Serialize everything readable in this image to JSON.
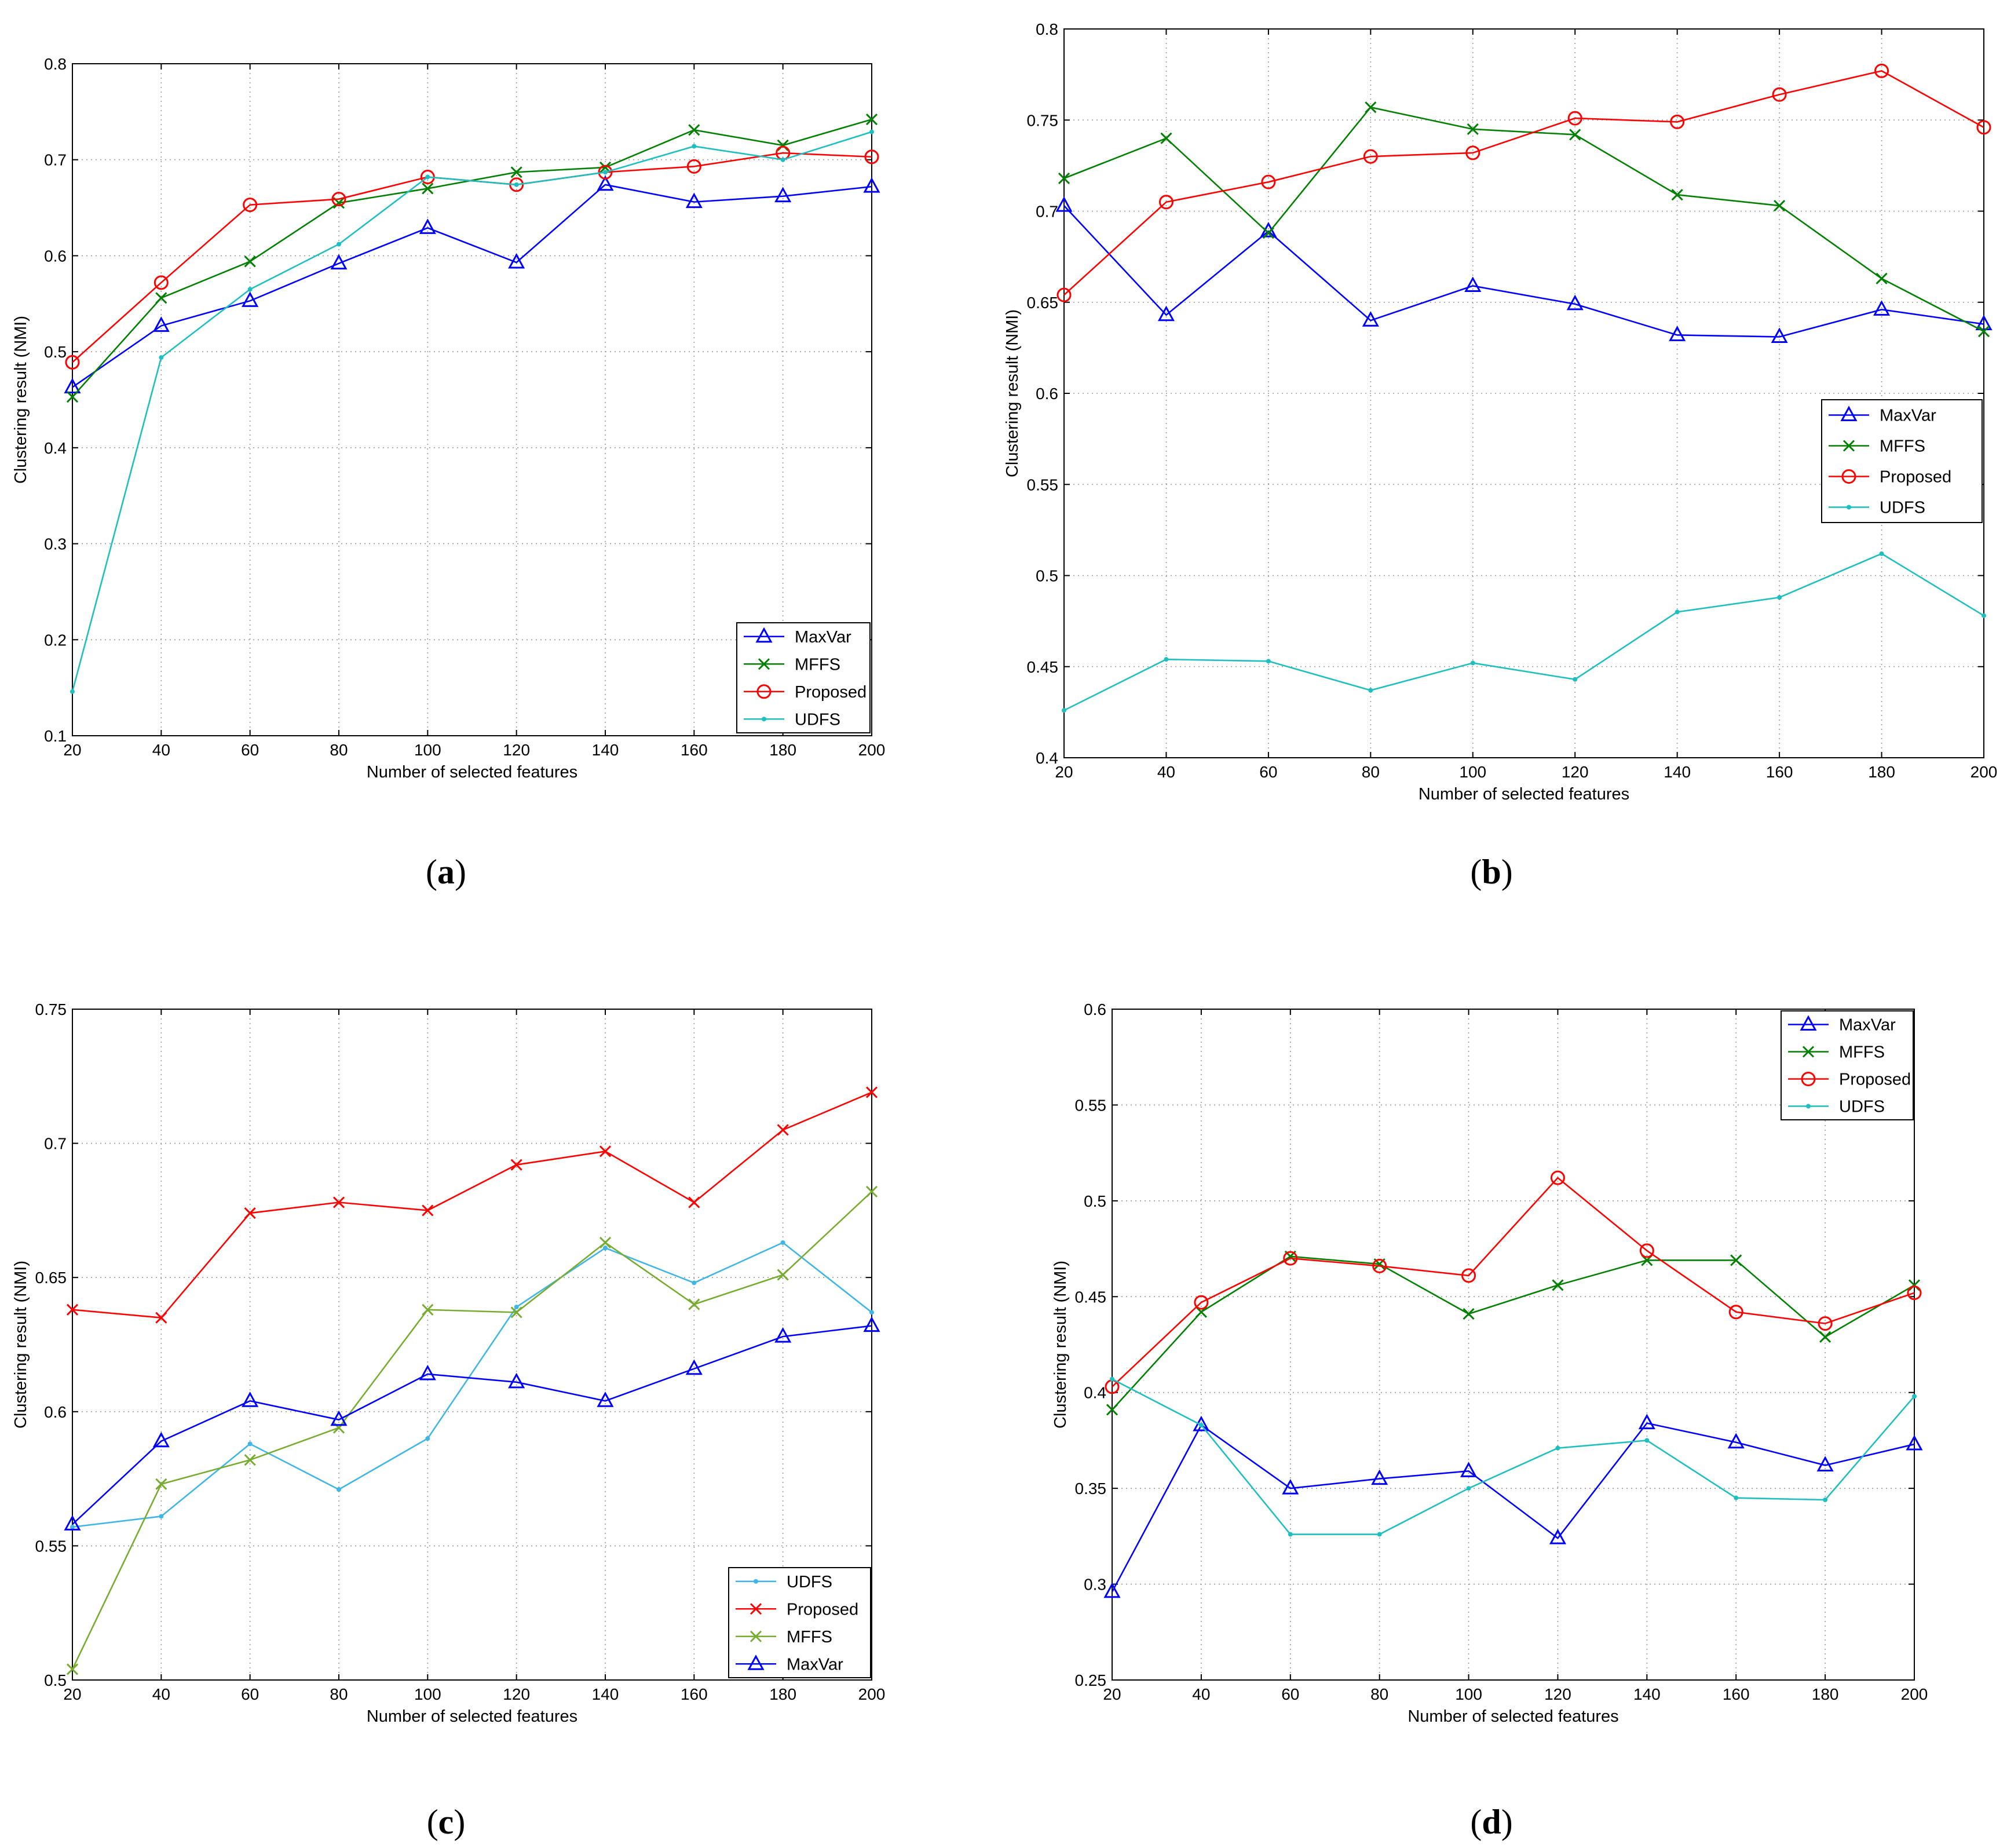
{
  "colors": {
    "MaxVar": "#0000ff",
    "MFFS": "#008000",
    "Proposed": "#ff0000",
    "UDFS": "#1fbfbf",
    "UDFS_c": "#3fb6e6",
    "Proposed_c": "#ff0000",
    "MFFS_c": "#77ac30",
    "MaxVar_c": "#0000ff"
  },
  "chart_data": [
    {
      "id": "a",
      "type": "line",
      "caption_open": "(",
      "caption_letter": "a",
      "caption_close": ")",
      "xlabel": "Number of selected features",
      "ylabel": "Clustering result (NMI)",
      "x": [
        20,
        40,
        60,
        80,
        100,
        120,
        140,
        160,
        180,
        200
      ],
      "xlim": [
        20,
        200
      ],
      "ylim": [
        0.1,
        0.8
      ],
      "xticks": [
        "20",
        "40",
        "60",
        "80",
        "100",
        "120",
        "140",
        "160",
        "180",
        "200"
      ],
      "yticks": [
        "0.1",
        "0.2",
        "0.3",
        "0.4",
        "0.5",
        "0.6",
        "0.7",
        "0.8"
      ],
      "grid": true,
      "legend_position": "bottom-right",
      "series": [
        {
          "name": "MaxVar",
          "marker": "triangle",
          "colorKey": "MaxVar",
          "values": [
            0.463,
            0.527,
            0.553,
            0.592,
            0.629,
            0.593,
            0.674,
            0.656,
            0.662,
            0.672
          ]
        },
        {
          "name": "MFFS",
          "marker": "x",
          "colorKey": "MFFS",
          "values": [
            0.453,
            0.556,
            0.594,
            0.655,
            0.67,
            0.687,
            0.692,
            0.731,
            0.715,
            0.742
          ]
        },
        {
          "name": "Proposed",
          "marker": "circle",
          "colorKey": "Proposed",
          "values": [
            0.489,
            0.572,
            0.653,
            0.659,
            0.682,
            0.674,
            0.687,
            0.693,
            0.707,
            0.703
          ]
        },
        {
          "name": "UDFS",
          "marker": "dot",
          "colorKey": "UDFS",
          "values": [
            0.146,
            0.494,
            0.565,
            0.612,
            0.682,
            0.674,
            0.687,
            0.714,
            0.7,
            0.729
          ]
        }
      ]
    },
    {
      "id": "b",
      "type": "line",
      "caption_open": "(",
      "caption_letter": "b",
      "caption_close": ")",
      "xlabel": "Number of selected features",
      "ylabel": "Clustering result (NMI)",
      "x": [
        20,
        40,
        60,
        80,
        100,
        120,
        140,
        160,
        180,
        200
      ],
      "xlim": [
        20,
        200
      ],
      "ylim": [
        0.4,
        0.8
      ],
      "xticks": [
        "20",
        "40",
        "60",
        "80",
        "100",
        "120",
        "140",
        "160",
        "180",
        "200"
      ],
      "yticks": [
        "0.4",
        "0.45",
        "0.5",
        "0.55",
        "0.6",
        "0.65",
        "0.7",
        "0.75",
        "0.8"
      ],
      "grid": true,
      "legend_position": "right",
      "series": [
        {
          "name": "MaxVar",
          "marker": "triangle",
          "colorKey": "MaxVar",
          "values": [
            0.703,
            0.643,
            0.689,
            0.64,
            0.659,
            0.649,
            0.632,
            0.631,
            0.646,
            0.638
          ]
        },
        {
          "name": "MFFS",
          "marker": "x",
          "colorKey": "MFFS",
          "values": [
            0.718,
            0.74,
            0.688,
            0.757,
            0.745,
            0.742,
            0.709,
            0.703,
            0.663,
            0.634
          ]
        },
        {
          "name": "Proposed",
          "marker": "circle",
          "colorKey": "Proposed",
          "values": [
            0.654,
            0.705,
            0.716,
            0.73,
            0.732,
            0.751,
            0.749,
            0.764,
            0.777,
            0.746
          ]
        },
        {
          "name": "UDFS",
          "marker": "dot",
          "colorKey": "UDFS",
          "values": [
            0.426,
            0.454,
            0.453,
            0.437,
            0.452,
            0.443,
            0.48,
            0.488,
            0.512,
            0.478
          ]
        }
      ]
    },
    {
      "id": "c",
      "type": "line",
      "caption_open": "(",
      "caption_letter": "c",
      "caption_close": ")",
      "xlabel": "Number of selected features",
      "ylabel": "Clustering result (NMI)",
      "x": [
        20,
        40,
        60,
        80,
        100,
        120,
        140,
        160,
        180,
        200
      ],
      "xlim": [
        20,
        200
      ],
      "ylim": [
        0.5,
        0.75
      ],
      "xticks": [
        "20",
        "40",
        "60",
        "80",
        "100",
        "120",
        "140",
        "160",
        "180",
        "200"
      ],
      "yticks": [
        "0.5",
        "0.55",
        "0.6",
        "0.65",
        "0.7",
        "0.75"
      ],
      "grid": true,
      "legend_position": "bottom-right",
      "series": [
        {
          "name": "UDFS",
          "marker": "dot",
          "colorKey": "UDFS_c",
          "values": [
            0.557,
            0.561,
            0.588,
            0.571,
            0.59,
            0.639,
            0.661,
            0.648,
            0.663,
            0.637
          ]
        },
        {
          "name": "Proposed",
          "marker": "x",
          "colorKey": "Proposed_c",
          "values": [
            0.638,
            0.635,
            0.674,
            0.678,
            0.675,
            0.692,
            0.697,
            0.678,
            0.705,
            0.719
          ]
        },
        {
          "name": "MFFS",
          "marker": "x",
          "colorKey": "MFFS_c",
          "values": [
            0.504,
            0.573,
            0.582,
            0.594,
            0.638,
            0.637,
            0.663,
            0.64,
            0.651,
            0.682
          ]
        },
        {
          "name": "MaxVar",
          "marker": "triangle",
          "colorKey": "MaxVar_c",
          "values": [
            0.558,
            0.589,
            0.604,
            0.597,
            0.614,
            0.611,
            0.604,
            0.616,
            0.628,
            0.632
          ]
        }
      ]
    },
    {
      "id": "d",
      "type": "line",
      "caption_open": "(",
      "caption_letter": "d",
      "caption_close": ")",
      "xlabel": "Number of selected features",
      "ylabel": "Clustering result (NMI)",
      "x": [
        20,
        40,
        60,
        80,
        100,
        120,
        140,
        160,
        180,
        200
      ],
      "xlim": [
        20,
        200
      ],
      "ylim": [
        0.25,
        0.6
      ],
      "xticks": [
        "20",
        "40",
        "60",
        "80",
        "100",
        "120",
        "140",
        "160",
        "180",
        "200"
      ],
      "yticks": [
        "0.25",
        "0.3",
        "0.35",
        "0.4",
        "0.45",
        "0.5",
        "0.55",
        "0.6"
      ],
      "grid": true,
      "legend_position": "top-right",
      "series": [
        {
          "name": "MaxVar",
          "marker": "triangle",
          "colorKey": "MaxVar",
          "values": [
            0.296,
            0.383,
            0.35,
            0.355,
            0.359,
            0.324,
            0.384,
            0.374,
            0.362,
            0.373
          ]
        },
        {
          "name": "MFFS",
          "marker": "x",
          "colorKey": "MFFS",
          "values": [
            0.391,
            0.442,
            0.471,
            0.467,
            0.441,
            0.456,
            0.469,
            0.469,
            0.429,
            0.456
          ]
        },
        {
          "name": "Proposed",
          "marker": "circle",
          "colorKey": "Proposed",
          "values": [
            0.403,
            0.447,
            0.47,
            0.466,
            0.461,
            0.512,
            0.474,
            0.442,
            0.436,
            0.452
          ]
        },
        {
          "name": "UDFS",
          "marker": "dot",
          "colorKey": "UDFS",
          "values": [
            0.407,
            0.383,
            0.326,
            0.326,
            0.35,
            0.371,
            0.375,
            0.345,
            0.344,
            0.398
          ]
        }
      ]
    }
  ]
}
